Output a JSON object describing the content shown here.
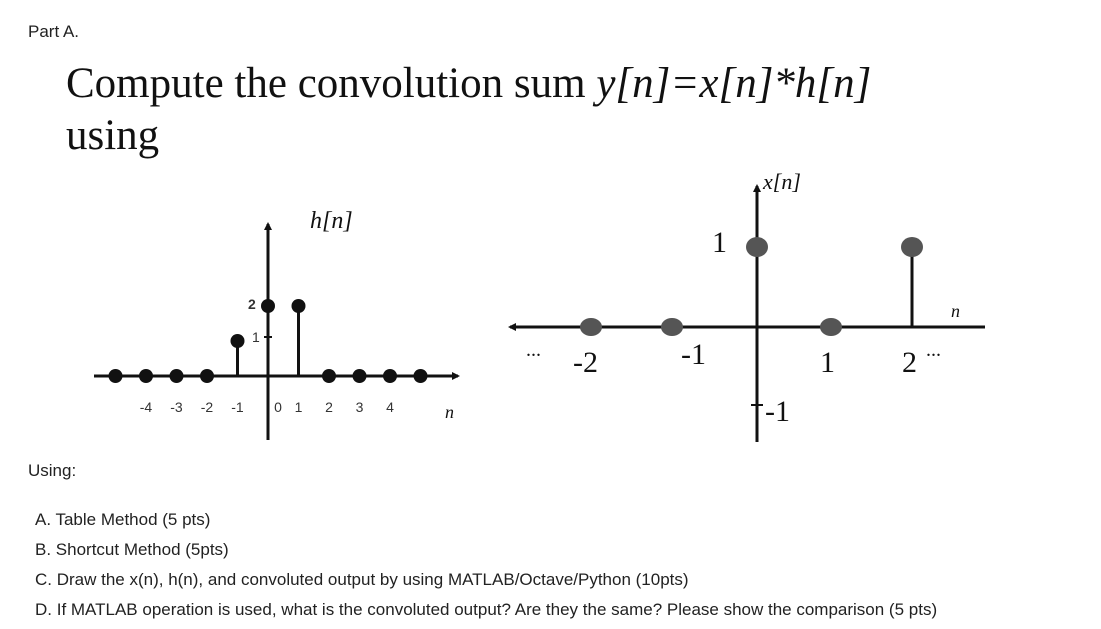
{
  "part_label": "Part A.",
  "title": {
    "prefix": "Compute the convolution sum ",
    "equation": "y[n]=x[n]*h[n]",
    "suffix": "using"
  },
  "figure": {
    "h": {
      "label": "h[n]",
      "axis_label": "n",
      "value_ticks": [
        "2",
        "1"
      ],
      "ticks": [
        "-4",
        "-3",
        "-2",
        "-1",
        "0",
        "1",
        "2",
        "3",
        "4"
      ],
      "samples": [
        {
          "n": -5,
          "v": 0
        },
        {
          "n": -4,
          "v": 0
        },
        {
          "n": -3,
          "v": 0
        },
        {
          "n": -2,
          "v": 0
        },
        {
          "n": -1,
          "v": 1
        },
        {
          "n": 0,
          "v": 2
        },
        {
          "n": 1,
          "v": 2
        },
        {
          "n": 2,
          "v": 0
        },
        {
          "n": 3,
          "v": 0
        },
        {
          "n": 4,
          "v": 0
        },
        {
          "n": 5,
          "v": 0
        }
      ]
    },
    "x": {
      "label": "x[n]",
      "axis_label": "n",
      "ticks": [
        "-2",
        "-1",
        "1",
        "2"
      ],
      "value_labels": [
        "1",
        "-1"
      ],
      "ellipsis": "...",
      "samples": [
        {
          "n": -2,
          "v": 0
        },
        {
          "n": -1,
          "v": 0
        },
        {
          "n": 0,
          "v": 1
        },
        {
          "n": 1,
          "v": 0
        },
        {
          "n": 2,
          "v": 1
        }
      ]
    }
  },
  "using_label": "Using:",
  "tasks": [
    "A. Table Method (5 pts)",
    "B. Shortcut Method (5pts)",
    "C. Draw the x(n), h(n), and convoluted output by using MATLAB/Octave/Python (10pts)",
    "D. If MATLAB operation is used, what is the convoluted output? Are they the same? Please show the comparison (5 pts)"
  ]
}
